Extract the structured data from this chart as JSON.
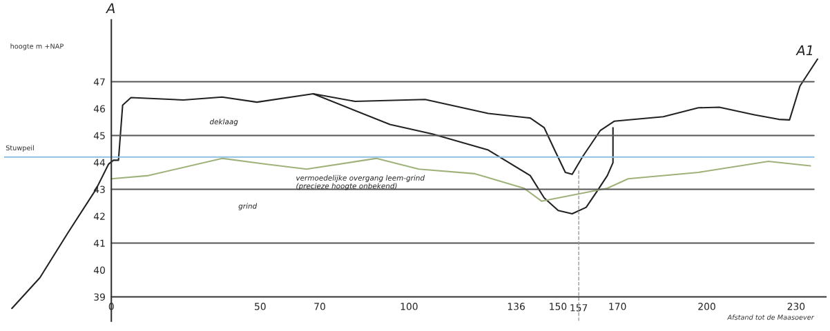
{
  "chart_data": {
    "type": "line",
    "ylabel": "hoogte m +NAP",
    "xlabel": "Afstand tot de Maasoever",
    "xlim": [
      -36,
      240
    ],
    "ylim": [
      38.1,
      49.3
    ],
    "xticks": [
      0,
      50,
      70,
      100,
      136,
      150,
      157,
      170,
      200,
      230
    ],
    "yticks": [
      39,
      40,
      41,
      42,
      43,
      44,
      45,
      46,
      47
    ],
    "grid": false,
    "legend": false,
    "marker": "none",
    "series": [
      {
        "color": "#222222",
        "x": [
          -33.4,
          -24,
          -14.6,
          -5.2,
          -0.9,
          0.7,
          2.4,
          3.8,
          6.6,
          24.2,
          37.2,
          48.9,
          67.8,
          81.9,
          105.4,
          126.6,
          140.7,
          145.4,
          148.9,
          152.5,
          154.8,
          158.4,
          164.2,
          168.9,
          185.4,
          197.2,
          204.2,
          216,
          224.2,
          227.8,
          231.3,
          237.2
        ],
        "values": [
          38.57,
          39.71,
          41.38,
          42.99,
          43.94,
          44.08,
          44.08,
          46.13,
          46.41,
          46.32,
          46.43,
          46.24,
          46.55,
          46.27,
          46.34,
          45.82,
          45.65,
          45.29,
          44.46,
          43.63,
          43.56,
          44.23,
          45.18,
          45.53,
          45.7,
          46.03,
          46.05,
          45.77,
          45.6,
          45.58,
          46.84,
          47.84
        ]
      },
      {
        "color": "#222222",
        "x": [
          67.8,
          93.6,
          107.8,
          126.6,
          140.7,
          145.4,
          150.1,
          154.8,
          159.5,
          163.1,
          166.6,
          168.5,
          168.5
        ],
        "values": [
          46.55,
          45.41,
          45.06,
          44.46,
          43.51,
          42.68,
          42.21,
          42.09,
          42.33,
          42.92,
          43.51,
          43.99,
          45.29
        ]
      },
      {
        "color": "#9fb27a",
        "x": [
          0,
          12.5,
          37.2,
          51.4,
          65.6,
          89.1,
          103.3,
          122.1,
          138.6,
          144.5,
          166.6,
          173.6,
          197.2,
          220.7,
          234.8
        ],
        "values": [
          43.39,
          43.51,
          44.15,
          43.94,
          43.75,
          44.15,
          43.75,
          43.58,
          43.04,
          42.56,
          43.04,
          43.39,
          43.63,
          44.04,
          43.87
        ]
      }
    ],
    "ref_lines": [
      {
        "axis": "y",
        "value": 47,
        "color": "#555555"
      },
      {
        "axis": "y",
        "value": 45,
        "color": "#555555"
      },
      {
        "axis": "y",
        "value": 43,
        "color": "#555555"
      },
      {
        "axis": "y",
        "value": 41,
        "color": "#555555"
      },
      {
        "axis": "y",
        "value": 44.2,
        "label": "Stuwpeil",
        "color": "#8fbfe0"
      },
      {
        "axis": "x",
        "value": 157,
        "color": "#999999",
        "line_style": "dashed"
      }
    ],
    "annotations": [
      "A",
      "A1",
      "deklaag",
      "vermoedelijke overgang leem-grind\n(precieze hoogte onbekend)",
      "grind"
    ]
  }
}
